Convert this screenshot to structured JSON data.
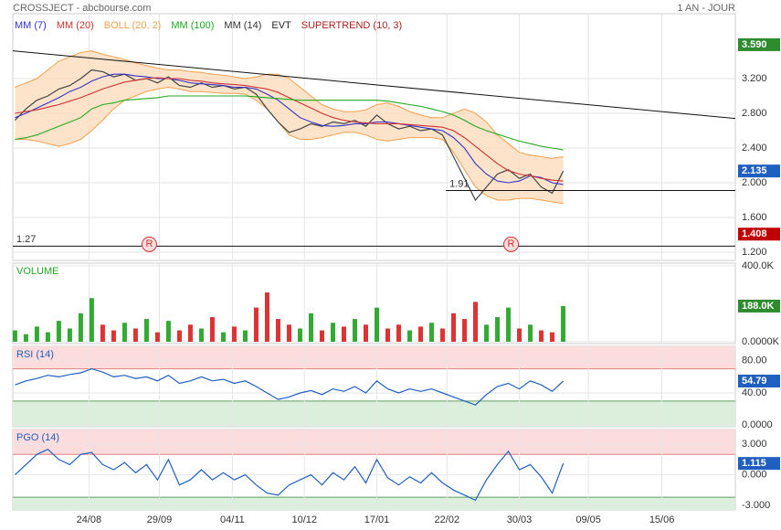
{
  "header": {
    "title": "CROSSJECT - abcbourse.com",
    "period": "1 AN - JOUR"
  },
  "chart_data": [
    {
      "type": "line",
      "price": {
        "color": "#444444",
        "values": [
          2.72,
          2.85,
          2.95,
          3.0,
          3.08,
          3.12,
          3.2,
          3.3,
          3.28,
          3.22,
          3.25,
          3.18,
          3.2,
          3.15,
          3.22,
          3.12,
          3.1,
          3.15,
          3.1,
          3.12,
          3.08,
          3.1,
          3.02,
          2.85,
          2.7,
          2.58,
          2.62,
          2.68,
          2.65,
          2.7,
          2.68,
          2.72,
          2.65,
          2.78,
          2.68,
          2.62,
          2.65,
          2.6,
          2.62,
          2.55,
          2.3,
          2.05,
          1.8,
          1.95,
          2.1,
          2.15,
          2.05,
          2.1,
          1.95,
          1.88,
          2.135
        ]
      },
      "series": [
        {
          "name": "MM (7)",
          "color": "#3333cc",
          "values": [
            2.75,
            2.8,
            2.86,
            2.92,
            2.98,
            3.05,
            3.1,
            3.17,
            3.22,
            3.25,
            3.25,
            3.23,
            3.22,
            3.2,
            3.2,
            3.18,
            3.15,
            3.14,
            3.13,
            3.12,
            3.1,
            3.1,
            3.08,
            3.02,
            2.95,
            2.85,
            2.75,
            2.7,
            2.66,
            2.65,
            2.66,
            2.68,
            2.68,
            2.7,
            2.7,
            2.68,
            2.66,
            2.64,
            2.62,
            2.6,
            2.52,
            2.4,
            2.22,
            2.1,
            2.02,
            2.0,
            2.02,
            2.08,
            2.06,
            2.0,
            1.98
          ]
        },
        {
          "name": "MM (20)",
          "color": "#cc3333",
          "values": [
            2.8,
            2.82,
            2.84,
            2.87,
            2.9,
            2.94,
            2.98,
            3.03,
            3.08,
            3.12,
            3.16,
            3.18,
            3.2,
            3.21,
            3.2,
            3.2,
            3.18,
            3.17,
            3.15,
            3.14,
            3.13,
            3.12,
            3.1,
            3.08,
            3.04,
            2.98,
            2.92,
            2.86,
            2.8,
            2.75,
            2.72,
            2.7,
            2.69,
            2.68,
            2.68,
            2.68,
            2.67,
            2.66,
            2.65,
            2.64,
            2.6,
            2.52,
            2.42,
            2.32,
            2.22,
            2.14,
            2.1,
            2.08,
            2.05,
            2.03,
            2.02
          ]
        },
        {
          "name": "BOLL (20, 2)",
          "color": "#f0a050",
          "fill": "#fbdcbc",
          "upper": [
            3.1,
            3.15,
            3.2,
            3.3,
            3.4,
            3.45,
            3.5,
            3.52,
            3.48,
            3.45,
            3.42,
            3.38,
            3.35,
            3.32,
            3.3,
            3.3,
            3.28,
            3.27,
            3.25,
            3.24,
            3.22,
            3.2,
            3.22,
            3.25,
            3.25,
            3.2,
            3.1,
            3.0,
            2.9,
            2.85,
            2.82,
            2.82,
            2.84,
            2.9,
            2.92,
            2.88,
            2.82,
            2.78,
            2.75,
            2.75,
            2.8,
            2.85,
            2.8,
            2.7,
            2.55,
            2.45,
            2.35,
            2.32,
            2.3,
            2.28,
            2.3
          ],
          "lower": [
            2.5,
            2.5,
            2.48,
            2.45,
            2.42,
            2.45,
            2.5,
            2.6,
            2.72,
            2.85,
            2.95,
            3.0,
            3.05,
            3.08,
            3.1,
            3.08,
            3.05,
            3.05,
            3.04,
            3.03,
            3.03,
            3.02,
            2.95,
            2.85,
            2.7,
            2.55,
            2.5,
            2.5,
            2.52,
            2.55,
            2.58,
            2.58,
            2.55,
            2.5,
            2.48,
            2.5,
            2.52,
            2.52,
            2.52,
            2.5,
            2.35,
            2.15,
            1.95,
            1.85,
            1.8,
            1.8,
            1.82,
            1.82,
            1.8,
            1.78,
            1.76
          ]
        },
        {
          "name": "MM (100)",
          "color": "#22aa22",
          "values": [
            2.5,
            2.52,
            2.55,
            2.6,
            2.65,
            2.7,
            2.75,
            2.85,
            2.9,
            2.92,
            2.95,
            2.96,
            2.97,
            2.98,
            3.0,
            3.0,
            3.0,
            3.0,
            3.0,
            3.0,
            3.0,
            3.0,
            2.99,
            2.98,
            2.97,
            2.96,
            2.95,
            2.95,
            2.95,
            2.95,
            2.95,
            2.95,
            2.95,
            2.95,
            2.94,
            2.92,
            2.9,
            2.88,
            2.85,
            2.82,
            2.78,
            2.72,
            2.65,
            2.6,
            2.56,
            2.52,
            2.48,
            2.45,
            2.42,
            2.4,
            2.38
          ]
        },
        {
          "name": "MM (14)",
          "color": "#333333"
        },
        {
          "name": "EVT",
          "color": "#222222"
        },
        {
          "name": "SUPERTREND (10, 3)",
          "color": "#aa2222"
        }
      ],
      "xlim": [
        -0.2,
        65.7
      ],
      "ylim": [
        1.105,
        3.947
      ],
      "yticks": [
        {
          "value": 3.2,
          "label": "3.200"
        },
        {
          "value": 2.8,
          "label": "2.800"
        },
        {
          "value": 2.4,
          "label": "2.400"
        },
        {
          "value": 2.0,
          "label": "2.000"
        },
        {
          "value": 1.6,
          "label": "1.600"
        },
        {
          "value": 1.2,
          "label": "1.200"
        }
      ],
      "trendline": [
        3.52,
        2.74
      ],
      "levels": [
        {
          "value": 1.91,
          "start": 39.3
        },
        {
          "value": 1.27,
          "start": -0.2
        }
      ],
      "markers": [
        {
          "x": 12.25,
          "y": 1.27,
          "label": "R"
        },
        {
          "x": 45.25,
          "y": 1.27,
          "label": "R"
        }
      ],
      "badges": [
        {
          "value": 3.59,
          "label": "3.590",
          "color": "#2e8b2e"
        },
        {
          "value": 2.135,
          "color": "#1f5fbf"
        },
        {
          "value": 1.408,
          "color": "#c00000"
        }
      ]
    },
    {
      "type": "bar",
      "title": "VOLUME",
      "title_color": "#22aa22",
      "up_color": "#33aa33",
      "down_color": "#dd3333",
      "values": [
        60,
        40,
        80,
        50,
        110,
        70,
        150,
        230,
        90,
        60,
        100,
        70,
        120,
        50,
        110,
        60,
        90,
        70,
        130,
        50,
        80,
        60,
        180,
        260,
        120,
        90,
        70,
        150,
        60,
        100,
        80,
        120,
        90,
        180,
        70,
        90,
        60,
        80,
        100,
        70,
        150,
        120,
        210,
        90,
        130,
        180,
        70,
        90,
        60,
        50,
        188
      ],
      "last_label": "188.0K",
      "badge_color": "#2e8b2e",
      "xlim": [
        -0.2,
        65.7
      ],
      "ylim": [
        -9.6,
        414
      ],
      "yticks": [
        {
          "value": 400,
          "label": "400.0K"
        },
        {
          "value": 0,
          "label": "0.0000K"
        }
      ]
    },
    {
      "type": "line",
      "title": "RSI (14)",
      "color": "#1f5fbf",
      "zones": {
        "high": 70,
        "low": 30
      },
      "values": [
        50,
        55,
        58,
        62,
        60,
        63,
        65,
        70,
        66,
        60,
        62,
        58,
        60,
        55,
        62,
        52,
        55,
        60,
        55,
        57,
        52,
        55,
        48,
        40,
        32,
        35,
        40,
        43,
        38,
        45,
        42,
        48,
        40,
        55,
        45,
        40,
        45,
        42,
        45,
        40,
        35,
        30,
        25,
        38,
        48,
        52,
        45,
        55,
        50,
        42,
        54.79
      ],
      "xlim": [
        -0.2,
        65.7
      ],
      "ylim": [
        -2,
        98
      ],
      "yticks": [
        {
          "value": 80,
          "label": "80.00"
        },
        {
          "value": 40,
          "label": "40.00"
        },
        {
          "value": 0,
          "label": "0.0000"
        }
      ]
    },
    {
      "type": "line",
      "title": "PGO (14)",
      "color": "#1f5fbf",
      "zones": {
        "high": 2,
        "low": -2.2
      },
      "values": [
        0,
        1,
        2,
        2.5,
        1.5,
        1,
        2,
        2.2,
        1,
        0.5,
        1.2,
        0.2,
        1,
        -0.5,
        1.5,
        -1,
        -0.5,
        0.5,
        -0.5,
        0.2,
        -0.5,
        0,
        -1,
        -1.8,
        -2,
        -1,
        -0.5,
        0,
        -1,
        0.2,
        -0.5,
        0.8,
        -0.8,
        1.5,
        -0.3,
        -1,
        -0.2,
        -0.8,
        0.2,
        -0.8,
        -1.5,
        -2,
        -2.5,
        -0.5,
        1,
        2.3,
        0.5,
        1,
        -0.2,
        -1.8,
        1.115
      ],
      "xlim": [
        -0.2,
        65.7
      ],
      "ylim": [
        -3.45,
        4.45
      ],
      "yticks": [
        {
          "value": 3,
          "label": "3.000"
        },
        {
          "value": 0,
          "label": "0.000"
        },
        {
          "value": -3,
          "label": "-3.000"
        }
      ],
      "xticks": [
        {
          "value": 6.75,
          "label": "24/08"
        },
        {
          "value": 13.17,
          "label": "29/09"
        },
        {
          "value": 19.83,
          "label": "04/11"
        },
        {
          "value": 26.4,
          "label": "10/12"
        },
        {
          "value": 33,
          "label": "17/01"
        },
        {
          "value": 39.4,
          "label": "22/02"
        },
        {
          "value": 46,
          "label": "30/03"
        },
        {
          "value": 52.3,
          "label": "09/05"
        },
        {
          "value": 59,
          "label": "15/06"
        }
      ]
    }
  ]
}
